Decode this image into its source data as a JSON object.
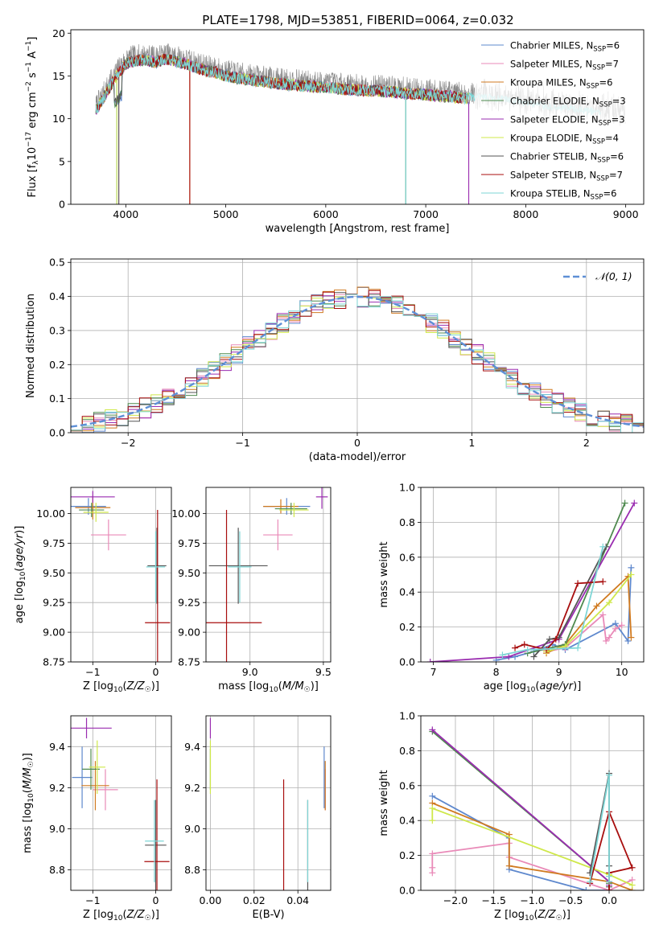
{
  "figure": {
    "title": "PLATE=1798, MJD=53851, FIBERID=0064, z=0.032"
  },
  "models": [
    {
      "name": "Chabrier MILES, N<sub>SSP</sub>=6",
      "imf": "Chabrier",
      "lib": "MILES",
      "nssp": "6",
      "color": "#5e88cd"
    },
    {
      "name": "Salpeter MILES, N<sub>SSP</sub>=7",
      "imf": "Salpeter",
      "lib": "MILES",
      "nssp": "7",
      "color": "#e98ab8"
    },
    {
      "name": "Kroupa MILES, N<sub>SSP</sub>=6",
      "imf": "Kroupa",
      "lib": "MILES",
      "nssp": "6",
      "color": "#d07a20"
    },
    {
      "name": "Chabrier ELODIE, N<sub>SSP</sub>=3",
      "imf": "Chabrier",
      "lib": "ELODIE",
      "nssp": "3",
      "color": "#4f8a4f"
    },
    {
      "name": "Salpeter ELODIE, N<sub>SSP</sub>=3",
      "imf": "Salpeter",
      "lib": "ELODIE",
      "nssp": "3",
      "color": "#9a2cb0"
    },
    {
      "name": "Kroupa ELODIE, N<sub>SSP</sub>=4",
      "imf": "Kroupa",
      "lib": "ELODIE",
      "nssp": "4",
      "color": "#cfe84a"
    },
    {
      "name": "Chabrier STELIB, N<sub>SSP</sub>=6",
      "imf": "Chabrier",
      "lib": "STELIB",
      "nssp": "6",
      "color": "#555555"
    },
    {
      "name": "Salpeter STELIB, N<sub>SSP</sub>=7",
      "imf": "Salpeter",
      "lib": "STELIB",
      "nssp": "7",
      "color": "#a80e0e"
    },
    {
      "name": "Kroupa STELIB, N<sub>SSP</sub>=6",
      "imf": "Kroupa",
      "lib": "STELIB",
      "nssp": "6",
      "color": "#7ed6d6"
    }
  ],
  "chart_data": [
    {
      "id": "spectrum",
      "type": "line",
      "title": "PLATE=1798, MJD=53851, FIBERID=0064, z=0.032",
      "xlabel": "wavelength [Angstrom, rest frame]",
      "ylabel": "Flux [f_λ 10^-17 erg cm^-2 s^-1 A^-1]",
      "xlim": [
        3450,
        9180
      ],
      "ylim": [
        0,
        20.4
      ],
      "xticks": [
        4000,
        5000,
        6000,
        7000,
        8000,
        9000
      ],
      "yticks": [
        0,
        5,
        10,
        15,
        20
      ],
      "grid": false,
      "legend": "upper right",
      "observed_envelope": {
        "x": [
          3700,
          3800,
          3900,
          4000,
          4100,
          4200,
          4300,
          4400,
          4500,
          4600,
          4700,
          4800,
          4900,
          5000,
          5200,
          5400,
          5600,
          5800,
          6000,
          6200,
          6400,
          6600,
          6800,
          7000,
          7200,
          7400,
          7600,
          7800,
          8000,
          8200,
          8400,
          8600,
          8800,
          9000
        ],
        "y": [
          11.5,
          13.5,
          15.5,
          17.0,
          17.4,
          17.5,
          17.2,
          17.6,
          17.3,
          17.0,
          16.6,
          16.2,
          16.0,
          15.6,
          15.2,
          14.9,
          14.6,
          14.4,
          14.3,
          14.0,
          13.9,
          13.8,
          13.6,
          13.4,
          13.2,
          13.0,
          12.8,
          12.6,
          12.3,
          11.9,
          11.6,
          11.3,
          11.1,
          11.0
        ]
      },
      "model_cutoff": 7430
    },
    {
      "id": "residuals",
      "type": "histogram",
      "xlabel": "(data-model)/error",
      "ylabel": "Normed distribution",
      "xlim": [
        -2.5,
        2.5
      ],
      "ylim": [
        0,
        0.51
      ],
      "xticks": [
        -2,
        -1,
        0,
        1,
        2
      ],
      "yticks": [
        0,
        0.1,
        0.2,
        0.3,
        0.4,
        0.5
      ],
      "grid": true,
      "legend_label": "𝒩(0, 1)",
      "legend": "upper right",
      "bin_width": 0.1
    },
    {
      "id": "age_vs_Z",
      "type": "scatter",
      "xlabel": "Z [log10(Z/Z☉)]",
      "ylabel": "age  [log10(age/yr)]",
      "xlim": [
        -1.35,
        0.25
      ],
      "ylim": [
        8.75,
        10.22
      ],
      "xticks": [
        -1,
        0
      ],
      "yticks": [
        8.75,
        9.0,
        9.25,
        9.5,
        9.75,
        10.0
      ],
      "grid": true,
      "points": [
        {
          "m": 0,
          "x": -1.07,
          "y": 10.06,
          "ex": 0.28,
          "ey": 0.07
        },
        {
          "m": 1,
          "x": -0.75,
          "y": 9.82,
          "ex": 0.28,
          "ey": 0.13
        },
        {
          "m": 2,
          "x": -1.0,
          "y": 10.05,
          "ex": 0.28,
          "ey": 0.1
        },
        {
          "m": 3,
          "x": -1.02,
          "y": 10.03,
          "ex": 0.2,
          "ey": 0.06
        },
        {
          "m": 4,
          "x": -1.0,
          "y": 10.14,
          "ex": 0.35,
          "ey": 0.05
        },
        {
          "m": 5,
          "x": -0.95,
          "y": 10.01,
          "ex": 0.2,
          "ey": 0.08
        },
        {
          "m": 6,
          "x": 0.02,
          "y": 9.56,
          "ex": 0.15,
          "ey": 0.32
        },
        {
          "m": 7,
          "x": 0.03,
          "y": 9.08,
          "ex": 0.2,
          "ey": 0.95
        },
        {
          "m": 8,
          "x": 0.0,
          "y": 9.55,
          "ex": 0.15,
          "ey": 0.3
        }
      ]
    },
    {
      "id": "age_vs_mass",
      "type": "scatter",
      "xlabel": "mass [log10(M/M☉)]",
      "ylabel": "",
      "xlim": [
        8.7,
        9.55
      ],
      "ylim": [
        8.75,
        10.22
      ],
      "xticks": [
        9.0,
        9.5
      ],
      "yticks": [
        8.75,
        9.0,
        9.25,
        9.5,
        9.75,
        10.0
      ],
      "grid": true,
      "points": [
        {
          "m": 0,
          "x": 9.25,
          "y": 10.06,
          "ex": 0.16,
          "ey": 0.07
        },
        {
          "m": 1,
          "x": 9.19,
          "y": 9.82,
          "ex": 0.1,
          "ey": 0.13
        },
        {
          "m": 2,
          "x": 9.21,
          "y": 10.06,
          "ex": 0.12,
          "ey": 0.06
        },
        {
          "m": 3,
          "x": 9.28,
          "y": 10.04,
          "ex": 0.11,
          "ey": 0.05
        },
        {
          "m": 4,
          "x": 9.49,
          "y": 10.14,
          "ex": 0.04,
          "ey": 0.1
        },
        {
          "m": 5,
          "x": 9.3,
          "y": 10.03,
          "ex": 0.1,
          "ey": 0.06
        },
        {
          "m": 6,
          "x": 8.92,
          "y": 9.56,
          "ex": 0.2,
          "ey": 0.32
        },
        {
          "m": 7,
          "x": 8.84,
          "y": 9.08,
          "ex": 0.24,
          "ey": 0.95
        },
        {
          "m": 8,
          "x": 8.93,
          "y": 9.55,
          "ex": 0.08,
          "ey": 0.3
        }
      ]
    },
    {
      "id": "massweight_vs_age",
      "type": "line",
      "xlabel": "age  [log10(age/yr)]",
      "ylabel": "mass weight",
      "xlim": [
        6.8,
        10.35
      ],
      "ylim": [
        0,
        1.0
      ],
      "xticks": [
        7,
        8,
        9,
        10
      ],
      "yticks": [
        0.0,
        0.2,
        0.4,
        0.6,
        0.8,
        1.0
      ],
      "grid": true,
      "series": [
        {
          "m": 0,
          "x": [
            8.0,
            8.3,
            8.6,
            8.9,
            9.1,
            9.9,
            10.1,
            10.15
          ],
          "y": [
            0.01,
            0.03,
            0.06,
            0.1,
            0.07,
            0.22,
            0.12,
            0.54
          ]
        },
        {
          "m": 1,
          "x": [
            8.8,
            9.1,
            9.7,
            9.75,
            9.8,
            9.9,
            10.0
          ],
          "y": [
            0.06,
            0.08,
            0.27,
            0.12,
            0.14,
            0.19,
            0.21
          ]
        },
        {
          "m": 2,
          "x": [
            8.8,
            9.1,
            9.6,
            10.1,
            10.15
          ],
          "y": [
            0.05,
            0.1,
            0.32,
            0.49,
            0.14
          ]
        },
        {
          "m": 3,
          "x": [
            8.5,
            9.1,
            10.05
          ],
          "y": [
            0.05,
            0.1,
            0.91
          ]
        },
        {
          "m": 4,
          "x": [
            6.95,
            8.2,
            9.0,
            10.2
          ],
          "y": [
            0.0,
            0.03,
            0.13,
            0.91
          ]
        },
        {
          "m": 5,
          "x": [
            8.8,
            9.1,
            9.8,
            10.15
          ],
          "y": [
            0.06,
            0.09,
            0.34,
            0.5
          ]
        },
        {
          "m": 6,
          "x": [
            8.6,
            8.85,
            9.0,
            9.75
          ],
          "y": [
            0.03,
            0.13,
            0.14,
            0.66
          ]
        },
        {
          "m": 7,
          "x": [
            8.3,
            8.45,
            8.8,
            8.95,
            9.3,
            9.7
          ],
          "y": [
            0.08,
            0.1,
            0.07,
            0.13,
            0.45,
            0.46
          ]
        },
        {
          "m": 8,
          "x": [
            8.1,
            8.5,
            9.3,
            9.7
          ],
          "y": [
            0.04,
            0.07,
            0.08,
            0.66
          ]
        }
      ]
    },
    {
      "id": "mass_vs_Z",
      "type": "scatter",
      "xlabel": "Z [log10(Z/Z☉)]",
      "ylabel": "mass [log10(M/M☉)]",
      "xlim": [
        -1.35,
        0.25
      ],
      "ylim": [
        8.7,
        9.55
      ],
      "xticks": [
        -1,
        0
      ],
      "yticks": [
        8.8,
        9.0,
        9.2,
        9.4
      ],
      "grid": true,
      "points": [
        {
          "m": 0,
          "x": -1.17,
          "y": 9.25,
          "ex": 0.16,
          "ey": 0.15
        },
        {
          "m": 1,
          "x": -0.8,
          "y": 9.19,
          "ex": 0.2,
          "ey": 0.1
        },
        {
          "m": 2,
          "x": -0.96,
          "y": 9.21,
          "ex": 0.22,
          "ey": 0.12
        },
        {
          "m": 3,
          "x": -1.03,
          "y": 9.29,
          "ex": 0.14,
          "ey": 0.1
        },
        {
          "m": 4,
          "x": -1.1,
          "y": 9.49,
          "ex": 0.4,
          "ey": 0.05
        },
        {
          "m": 5,
          "x": -0.93,
          "y": 9.3,
          "ex": 0.13,
          "ey": 0.13
        },
        {
          "m": 6,
          "x": 0.0,
          "y": 8.92,
          "ex": 0.17,
          "ey": 0.22
        },
        {
          "m": 7,
          "x": 0.02,
          "y": 8.84,
          "ex": 0.2,
          "ey": 0.4
        },
        {
          "m": 8,
          "x": -0.02,
          "y": 8.94,
          "ex": 0.15,
          "ey": 0.2
        }
      ]
    },
    {
      "id": "mass_vs_EBV",
      "type": "scatter",
      "xlabel": "E(B-V)",
      "ylabel": "",
      "xlim": [
        -0.002,
        0.055
      ],
      "ylim": [
        8.7,
        9.55
      ],
      "xticks": [
        0.0,
        0.02,
        0.04
      ],
      "yticks": [
        8.8,
        9.0,
        9.2,
        9.4
      ],
      "grid": true,
      "points": [
        {
          "m": 0,
          "x": 0.052,
          "y": 9.25,
          "ex": 0.0,
          "ey": 0.15
        },
        {
          "m": 1,
          "x": 0.0525,
          "y": 9.19,
          "ex": 0.0,
          "ey": 0.1
        },
        {
          "m": 2,
          "x": 0.0525,
          "y": 9.21,
          "ex": 0.0,
          "ey": 0.12
        },
        {
          "m": 3,
          "x": 0.0,
          "y": 9.29,
          "ex": 0.0,
          "ey": 0.1
        },
        {
          "m": 4,
          "x": 0.0,
          "y": 9.49,
          "ex": 0.0,
          "ey": 0.05
        },
        {
          "m": 5,
          "x": 0.0,
          "y": 9.3,
          "ex": 0.0,
          "ey": 0.13
        },
        {
          "m": 6,
          "x": 0.0445,
          "y": 8.92,
          "ex": 0.0,
          "ey": 0.22
        },
        {
          "m": 7,
          "x": 0.0335,
          "y": 8.84,
          "ex": 0.0,
          "ey": 0.4
        },
        {
          "m": 8,
          "x": 0.0445,
          "y": 8.94,
          "ex": 0.0,
          "ey": 0.2
        }
      ]
    },
    {
      "id": "massweight_vs_Z",
      "type": "line",
      "xlabel": "Z [log10(Z/Z☉)]",
      "ylabel": "mass weight",
      "xlim": [
        -2.45,
        0.45
      ],
      "ylim": [
        0,
        1.0
      ],
      "xticks": [
        -2.0,
        -1.5,
        -1.0,
        -0.5,
        0.0
      ],
      "yticks": [
        0.0,
        0.2,
        0.4,
        0.6,
        0.8,
        1.0
      ],
      "grid": true,
      "series": [
        {
          "m": 0,
          "x": [
            -2.3,
            -1.3,
            -1.3,
            -0.3,
            0.0
          ],
          "y": [
            0.54,
            0.3,
            0.12,
            0.0,
            0.0
          ]
        },
        {
          "m": 1,
          "x": [
            -2.3,
            -2.3,
            -2.3,
            -1.3,
            -1.3,
            0.0,
            0.3
          ],
          "y": [
            0.13,
            0.1,
            0.21,
            0.27,
            0.19,
            0.0,
            0.06
          ]
        },
        {
          "m": 2,
          "x": [
            -2.3,
            -1.3,
            -1.3,
            0.0,
            0.3
          ],
          "y": [
            0.5,
            0.32,
            0.14,
            0.05,
            0.0
          ]
        },
        {
          "m": 3,
          "x": [
            -2.3,
            0.0,
            0.0
          ],
          "y": [
            0.91,
            0.05,
            0.04
          ]
        },
        {
          "m": 4,
          "x": [
            -2.3,
            0.0,
            0.0
          ],
          "y": [
            0.92,
            0.05,
            0.03
          ]
        },
        {
          "m": 5,
          "x": [
            -2.3,
            -2.3,
            0.0,
            0.3
          ],
          "y": [
            0.4,
            0.47,
            0.09,
            0.03
          ]
        },
        {
          "m": 6,
          "x": [
            -0.25,
            0.0,
            0.0,
            0.0
          ],
          "y": [
            0.1,
            0.67,
            0.14,
            0.02
          ]
        },
        {
          "m": 7,
          "x": [
            -0.25,
            0.0,
            0.3,
            0.0,
            0.0
          ],
          "y": [
            0.04,
            0.45,
            0.13,
            0.1,
            0.0
          ]
        },
        {
          "m": 8,
          "x": [
            -0.25,
            0.0,
            0.0,
            0.0
          ],
          "y": [
            0.05,
            0.66,
            0.08,
            0.05
          ]
        }
      ]
    }
  ]
}
